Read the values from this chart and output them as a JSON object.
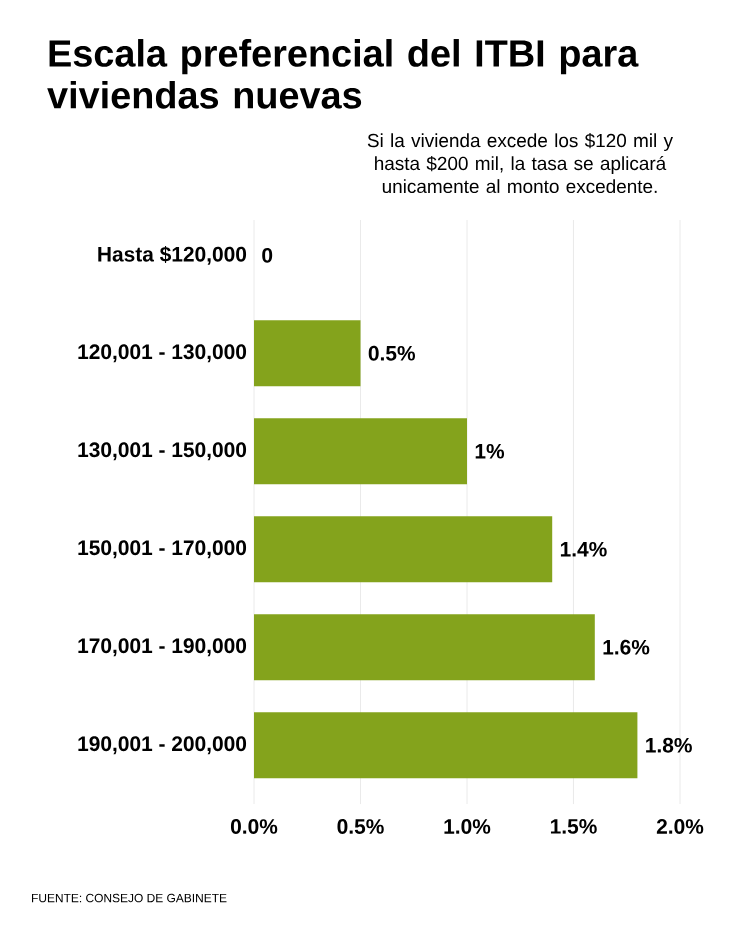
{
  "chart_data": {
    "type": "bar",
    "orientation": "horizontal",
    "title": "Escala preferencial del ITBI para viviendas nuevas",
    "annotations": [
      "Si la vivienda excede los $120 mil y hasta $200 mil, la tasa se aplicará unicamente al monto excedente.",
      "FUENTE: CONSEJO DE GABINETE"
    ],
    "categories": [
      "Hasta $120,000",
      "120,001 - 130,000",
      "130,001 - 150,000",
      "150,001 - 170,000",
      "170,001 - 190,000",
      "190,001 - 200,000"
    ],
    "values": [
      0,
      0.5,
      1,
      1.4,
      1.6,
      1.8
    ],
    "value_labels": [
      "0",
      "0.5%",
      "1%",
      "1.4%",
      "1.6%",
      "1.8%"
    ],
    "color": "#84a31c",
    "xlim": [
      0,
      2
    ],
    "xticks": [
      {
        "value": 0,
        "label": "0.0%"
      },
      {
        "value": 0.5,
        "label": "0.5%"
      },
      {
        "value": 1,
        "label": "1.0%"
      },
      {
        "value": 1.5,
        "label": "1.5%"
      },
      {
        "value": 2,
        "label": "2.0%"
      }
    ],
    "grid": "x"
  }
}
